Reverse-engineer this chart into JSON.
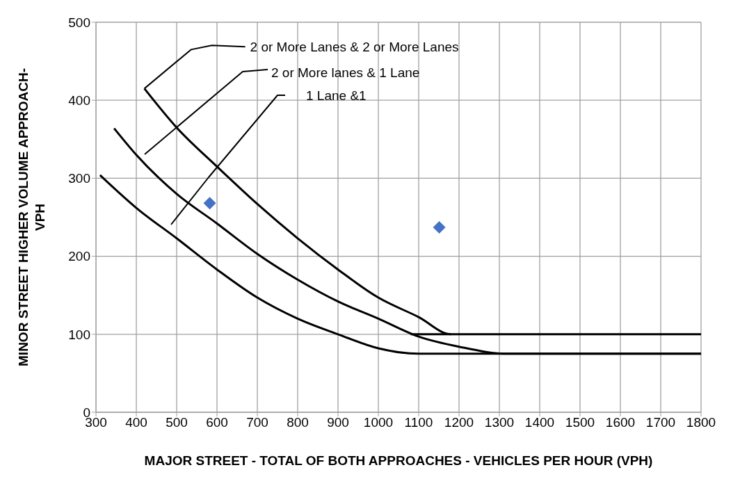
{
  "chart_data": {
    "type": "line",
    "xlabel": "MAJOR STREET - TOTAL OF BOTH APPROACHES - VEHICLES PER HOUR (VPH)",
    "ylabel": "MINOR STREET HIGHER VOLUME APPROACH- VPH",
    "xlim": [
      300,
      1800
    ],
    "xticks": [
      300,
      400,
      500,
      600,
      700,
      800,
      900,
      1000,
      1100,
      1200,
      1300,
      1400,
      1500,
      1600,
      1700,
      1800
    ],
    "ylim": [
      0,
      500
    ],
    "yticks": [
      0,
      100,
      200,
      300,
      400,
      500
    ],
    "grid": true,
    "marker": "none",
    "series": [
      {
        "type": "line",
        "color": "#000000",
        "x": [
          420,
          500,
          600,
          700,
          800,
          900,
          1000,
          1100,
          1180,
          1800
        ],
        "values": [
          415,
          365,
          315,
          267,
          223,
          183,
          147,
          122,
          100,
          100
        ]
      },
      {
        "type": "line",
        "color": "#000000",
        "x": [
          345,
          400,
          500,
          600,
          700,
          800,
          900,
          1000,
          1100,
          1200,
          1320,
          1800
        ],
        "values": [
          364,
          330,
          280,
          242,
          203,
          170,
          142,
          120,
          97,
          84,
          75,
          75
        ]
      },
      {
        "type": "line",
        "color": "#000000",
        "x": [
          310,
          400,
          500,
          600,
          700,
          800,
          900,
          1000,
          1100,
          1800
        ],
        "values": [
          304,
          262,
          223,
          183,
          147,
          120,
          100,
          82,
          75,
          75
        ]
      },
      {
        "type": "line",
        "color": "#000000",
        "x": [
          1080,
          1180
        ],
        "values": [
          100,
          100
        ]
      },
      {
        "type": "scatter",
        "color": "#4472c4",
        "marker": "diamond",
        "x": [
          582,
          1151
        ],
        "values": [
          268,
          237
        ]
      }
    ],
    "annotations": [
      {
        "text": "2 or More Lanes & 2 or More Lanes",
        "x": 420,
        "y": 415
      },
      "2 or More lanes & 1 Lane",
      "1 Lane &1"
    ]
  }
}
